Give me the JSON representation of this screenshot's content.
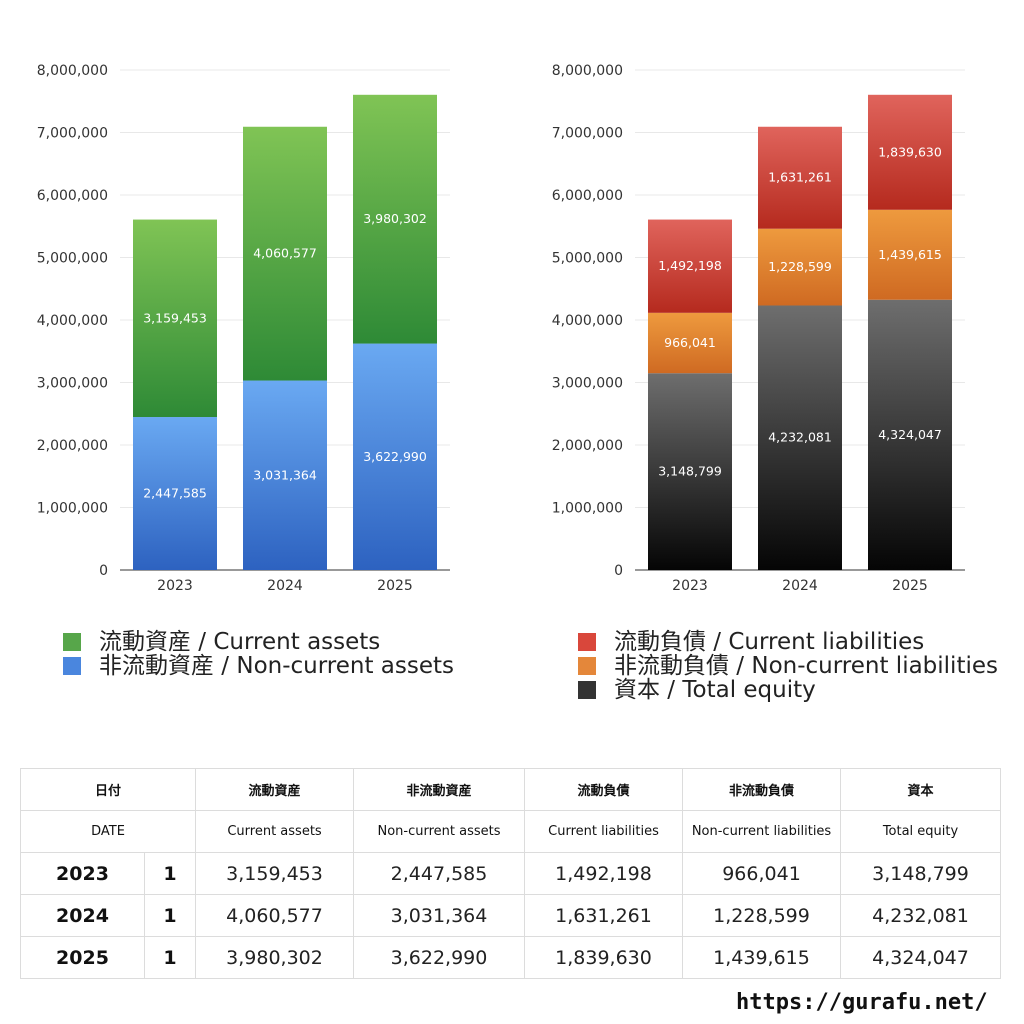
{
  "chart_data": [
    {
      "type": "bar",
      "stacked": true,
      "categories": [
        "2023",
        "2024",
        "2025"
      ],
      "ylim": [
        0,
        8000000
      ],
      "yticks": [
        "0",
        "1,000,000",
        "2,000,000",
        "3,000,000",
        "4,000,000",
        "5,000,000",
        "6,000,000",
        "7,000,000",
        "8,000,000"
      ],
      "grid": true,
      "series": [
        {
          "name": "非流動資産 / Non-current assets",
          "values": [
            2447585,
            3031364,
            3622990
          ],
          "labels": [
            "2,447,585",
            "3,031,364",
            "3,622,990"
          ],
          "color_top": "#6aa9f2",
          "color_bottom": "#2d62c0"
        },
        {
          "name": "流動資産 / Current assets",
          "values": [
            3159453,
            4060577,
            3980302
          ],
          "labels": [
            "3,159,453",
            "4,060,577",
            "3,980,302"
          ],
          "color_top": "#80c455",
          "color_bottom": "#2e8a36"
        }
      ]
    },
    {
      "type": "bar",
      "stacked": true,
      "categories": [
        "2023",
        "2024",
        "2025"
      ],
      "ylim": [
        0,
        8000000
      ],
      "yticks": [
        "0",
        "1,000,000",
        "2,000,000",
        "3,000,000",
        "4,000,000",
        "5,000,000",
        "6,000,000",
        "7,000,000",
        "8,000,000"
      ],
      "grid": true,
      "series": [
        {
          "name": "資本 / Total equity",
          "values": [
            3148799,
            4232081,
            4324047
          ],
          "labels": [
            "3,148,799",
            "4,232,081",
            "4,324,047"
          ],
          "color_top": "#6e6e6e",
          "color_bottom": "#050505"
        },
        {
          "name": "非流動負債 / Non-current liabilities",
          "values": [
            966041,
            1228599,
            1439615
          ],
          "labels": [
            "966,041",
            "1,228,599",
            "1,439,615"
          ],
          "color_top": "#ee9a3e",
          "color_bottom": "#cf6a22"
        },
        {
          "name": "流動負債 / Current liabilities",
          "values": [
            1492198,
            1631261,
            1839630
          ],
          "labels": [
            "1,492,198",
            "1,631,261",
            "1,839,630"
          ],
          "color_top": "#e0645c",
          "color_bottom": "#b52a1e"
        }
      ]
    }
  ],
  "legend_left": [
    {
      "label": "流動資産 / Current assets",
      "color": "#57a64a"
    },
    {
      "label": "非流動資産 / Non-current assets",
      "color": "#4a86de"
    }
  ],
  "legend_right": [
    {
      "label": "流動負債 / Current liabilities",
      "color": "#d9473b"
    },
    {
      "label": "非流動負債 / Non-current liabilities",
      "color": "#e4873a"
    },
    {
      "label": "資本 / Total equity",
      "color": "#333333"
    }
  ],
  "table": {
    "header_jp": [
      "日付",
      "流動資産",
      "非流動資産",
      "流動負債",
      "非流動負債",
      "資本"
    ],
    "header_en": [
      "DATE",
      "Current assets",
      "Non-current assets",
      "Current liabilities",
      "Non-current liabilities",
      "Total equity"
    ],
    "rows": [
      {
        "year": "2023",
        "month": "1",
        "values": [
          "3,159,453",
          "2,447,585",
          "1,492,198",
          "966,041",
          "3,148,799"
        ]
      },
      {
        "year": "2024",
        "month": "1",
        "values": [
          "4,060,577",
          "3,031,364",
          "1,631,261",
          "1,228,599",
          "4,232,081"
        ]
      },
      {
        "year": "2025",
        "month": "1",
        "values": [
          "3,980,302",
          "3,622,990",
          "1,839,630",
          "1,439,615",
          "4,324,047"
        ]
      }
    ]
  },
  "footer_url": "https://gurafu.net/"
}
